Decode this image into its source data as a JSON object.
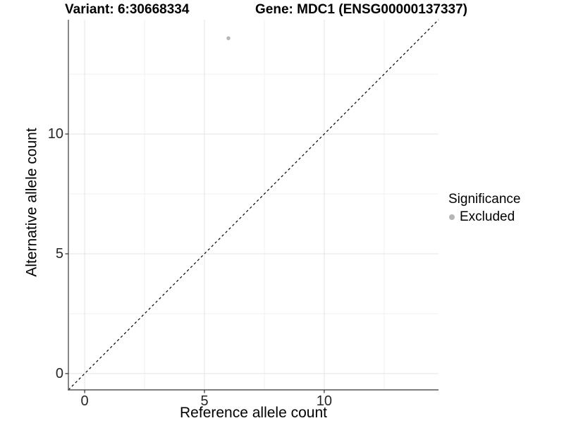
{
  "chart_data": {
    "type": "scatter",
    "title_variant": "Variant: 6:30668334",
    "title_gene": "Gene: MDC1 (ENSG00000137337)",
    "xlabel": "Reference allele count",
    "ylabel": "Alternative allele count",
    "xlim": [
      -0.68,
      14.77
    ],
    "ylim": [
      -0.68,
      14.77
    ],
    "x_ticks": [
      0,
      5,
      10
    ],
    "y_ticks": [
      0,
      5,
      10
    ],
    "x_minor_ticks": [
      2.5,
      7.5,
      12.5
    ],
    "y_minor_ticks": [
      2.5,
      7.5,
      12.5
    ],
    "grid": true,
    "points": [
      {
        "x": 6,
        "y": 14,
        "series": "Excluded"
      }
    ],
    "reference_line": {
      "style": "dashed",
      "slope": 1,
      "intercept": 0
    },
    "legend": {
      "title": "Significance",
      "position": "right",
      "items": [
        {
          "label": "Excluded",
          "color": "#b5b5b5"
        }
      ]
    },
    "colors": {
      "background": "#ffffff",
      "excluded_point": "#b5b5b5",
      "grid_major": "#e4e4e4",
      "grid_minor": "#f1f1f1",
      "axis_line": "#555555",
      "tick_mark": "#3a3a3a",
      "reference_line": "#000000",
      "tick_label": "#262626",
      "text": "#000000"
    }
  }
}
